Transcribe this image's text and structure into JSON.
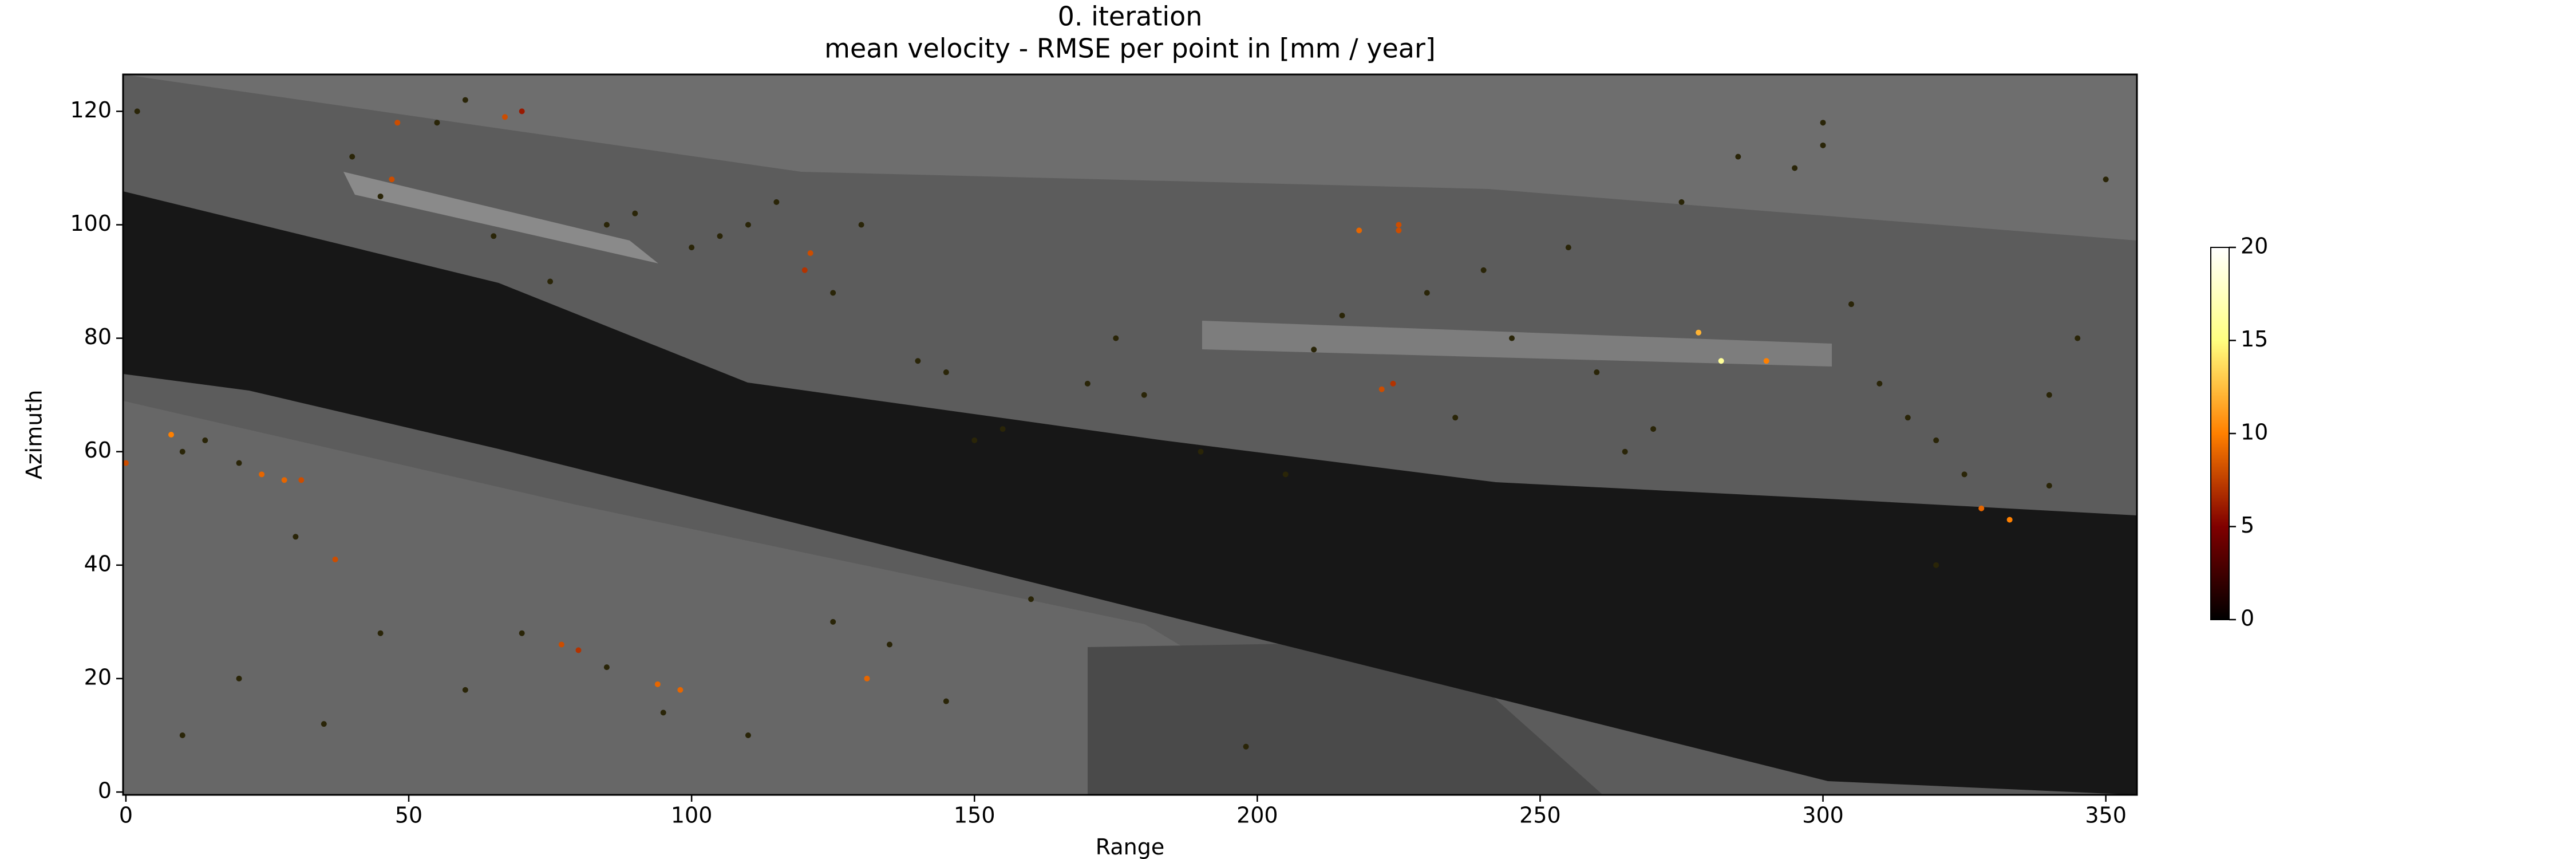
{
  "chart_data": {
    "type": "scatter",
    "title": "0. iteration",
    "subtitle": "mean velocity - RMSE per point in [mm / year]",
    "x_label": "Range",
    "y_label": "Azimuth",
    "xlim": [
      -0.5,
      355.5
    ],
    "ylim": [
      -0.5,
      126.5
    ],
    "xticks": [
      0,
      50,
      100,
      150,
      200,
      250,
      300,
      350
    ],
    "yticks": [
      0,
      20,
      40,
      60,
      80,
      100,
      120
    ],
    "colormap": "afmhot",
    "clim": [
      0,
      20
    ],
    "cticks": [
      0,
      5,
      10,
      15,
      20
    ],
    "x": [
      48,
      67,
      70,
      47,
      121,
      120,
      218,
      225,
      225,
      278,
      282,
      290,
      222,
      224,
      8,
      0,
      24,
      28,
      31,
      37,
      77,
      80,
      94,
      98,
      131,
      328,
      333,
      2,
      10,
      14,
      20,
      30,
      40,
      45,
      55,
      60,
      65,
      75,
      85,
      90,
      100,
      105,
      110,
      115,
      125,
      130,
      140,
      145,
      150,
      155,
      170,
      180,
      190,
      198,
      205,
      210,
      215,
      230,
      240,
      245,
      255,
      260,
      270,
      275,
      285,
      295,
      300,
      305,
      310,
      315,
      320,
      325,
      340,
      345,
      350,
      10,
      20,
      35,
      45,
      60,
      70,
      85,
      95,
      110,
      125,
      135,
      145,
      160,
      175,
      235,
      265,
      300,
      320,
      340
    ],
    "y": [
      118,
      119,
      120,
      108,
      95,
      92,
      99,
      100,
      99,
      81,
      76,
      76,
      71,
      72,
      63,
      58,
      56,
      55,
      55,
      41,
      26,
      25,
      19,
      18,
      20,
      50,
      48,
      120,
      60,
      62,
      58,
      45,
      112,
      105,
      118,
      122,
      98,
      90,
      100,
      102,
      96,
      98,
      100,
      104,
      88,
      100,
      76,
      74,
      62,
      64,
      72,
      70,
      60,
      8,
      56,
      78,
      84,
      88,
      92,
      80,
      96,
      74,
      64,
      104,
      112,
      110,
      118,
      86,
      72,
      66,
      62,
      56,
      70,
      80,
      108,
      10,
      20,
      12,
      28,
      18,
      28,
      22,
      14,
      10,
      30,
      26,
      16,
      34,
      80,
      66,
      60,
      114,
      40,
      54
    ],
    "c": [
      8,
      8,
      6,
      8,
      8,
      7,
      9,
      8,
      8,
      12,
      16,
      10,
      8,
      7,
      10,
      8,
      9,
      9,
      8,
      8,
      8,
      7,
      9,
      9,
      9,
      9,
      10,
      1,
      1,
      1,
      1,
      1,
      1,
      1,
      1,
      1,
      1,
      1,
      1,
      1,
      1,
      1,
      1,
      1,
      1,
      1,
      1,
      1,
      1,
      1,
      1,
      1,
      1,
      1,
      1,
      1,
      1,
      1,
      1,
      1,
      1,
      1,
      1,
      1,
      1,
      1,
      1,
      1,
      1,
      1,
      1,
      1,
      1,
      1,
      1,
      1,
      1,
      1,
      1,
      1,
      1,
      1,
      1,
      1,
      1,
      1,
      1,
      1,
      1,
      1,
      1,
      1,
      1,
      1
    ]
  }
}
